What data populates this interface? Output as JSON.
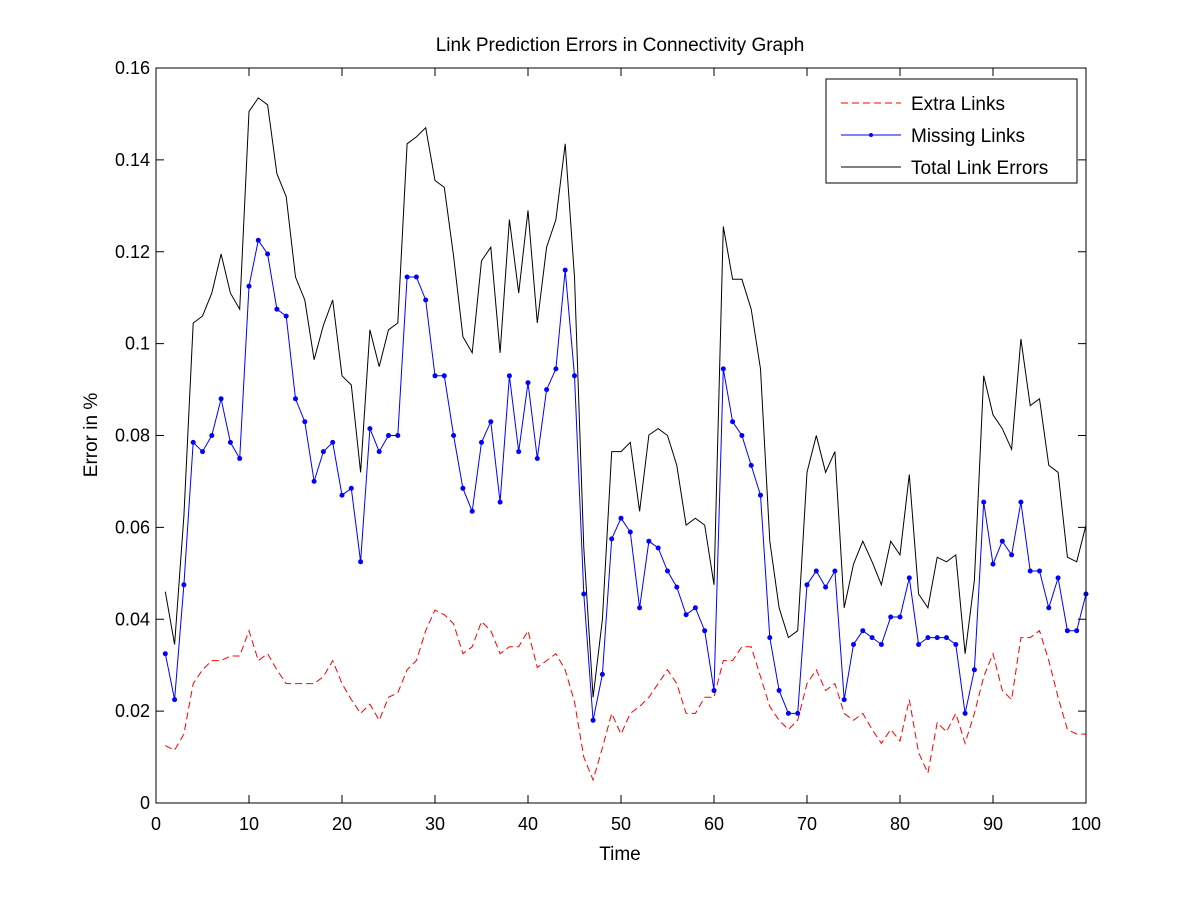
{
  "chart_data": {
    "type": "line",
    "title": "Link Prediction Errors in Connectivity Graph",
    "xlabel": "Time",
    "ylabel": "Error in %",
    "xlim": [
      0,
      100
    ],
    "ylim": [
      0,
      0.16
    ],
    "xticks": [
      "0",
      "10",
      "20",
      "30",
      "40",
      "50",
      "60",
      "70",
      "80",
      "90",
      "100"
    ],
    "yticks": [
      "0",
      "0.02",
      "0.04",
      "0.06",
      "0.08",
      "0.1",
      "0.12",
      "0.14",
      "0.16"
    ],
    "grid": false,
    "legend_position": "top-right",
    "x": [
      1,
      2,
      3,
      4,
      5,
      6,
      7,
      8,
      9,
      10,
      11,
      12,
      13,
      14,
      15,
      16,
      17,
      18,
      19,
      20,
      21,
      22,
      23,
      24,
      25,
      26,
      27,
      28,
      29,
      30,
      31,
      32,
      33,
      34,
      35,
      36,
      37,
      38,
      39,
      40,
      41,
      42,
      43,
      44,
      45,
      46,
      47,
      48,
      49,
      50,
      51,
      52,
      53,
      54,
      55,
      56,
      57,
      58,
      59,
      60,
      61,
      62,
      63,
      64,
      65,
      66,
      67,
      68,
      69,
      70,
      71,
      72,
      73,
      74,
      75,
      76,
      77,
      78,
      79,
      80,
      81,
      82,
      83,
      84,
      85,
      86,
      87,
      88,
      89,
      90,
      91,
      92,
      93,
      94,
      95,
      96,
      97,
      98,
      99,
      100
    ],
    "series": [
      {
        "name": "Extra Links",
        "color": "#ff0000",
        "style": "dashed",
        "values": [
          0.0125,
          0.0115,
          0.015,
          0.026,
          0.029,
          0.031,
          0.031,
          0.032,
          0.032,
          0.0375,
          0.031,
          0.0325,
          0.029,
          0.026,
          0.026,
          0.026,
          0.026,
          0.0275,
          0.031,
          0.026,
          0.0225,
          0.0195,
          0.0215,
          0.018,
          0.023,
          0.024,
          0.029,
          0.031,
          0.0375,
          0.042,
          0.041,
          0.039,
          0.0325,
          0.034,
          0.0395,
          0.0375,
          0.0325,
          0.034,
          0.034,
          0.0375,
          0.0295,
          0.031,
          0.0325,
          0.029,
          0.022,
          0.01,
          0.005,
          0.012,
          0.0195,
          0.015,
          0.0195,
          0.021,
          0.023,
          0.026,
          0.029,
          0.026,
          0.0195,
          0.0195,
          0.023,
          0.023,
          0.031,
          0.031,
          0.034,
          0.034,
          0.0275,
          0.021,
          0.018,
          0.016,
          0.018,
          0.026,
          0.029,
          0.0245,
          0.026,
          0.0195,
          0.018,
          0.0195,
          0.016,
          0.013,
          0.016,
          0.0135,
          0.0225,
          0.011,
          0.0065,
          0.0175,
          0.0155,
          0.0195,
          0.013,
          0.0195,
          0.0275,
          0.0325,
          0.0245,
          0.0225,
          0.036,
          0.036,
          0.0375,
          0.031,
          0.023,
          0.016,
          0.015,
          0.015
        ]
      },
      {
        "name": "Missing Links",
        "color": "#0000ff",
        "style": "solid-markers",
        "values": [
          0.0325,
          0.0225,
          0.0475,
          0.0785,
          0.0765,
          0.08,
          0.088,
          0.0785,
          0.075,
          0.1125,
          0.1225,
          0.1195,
          0.1075,
          0.106,
          0.088,
          0.083,
          0.07,
          0.0765,
          0.0785,
          0.067,
          0.0685,
          0.0525,
          0.0815,
          0.0765,
          0.08,
          0.08,
          0.1145,
          0.1145,
          0.1095,
          0.093,
          0.093,
          0.08,
          0.0685,
          0.0635,
          0.0785,
          0.083,
          0.0655,
          0.093,
          0.0765,
          0.0915,
          0.075,
          0.09,
          0.0945,
          0.116,
          0.093,
          0.0455,
          0.018,
          0.028,
          0.0575,
          0.062,
          0.059,
          0.0425,
          0.057,
          0.0555,
          0.0505,
          0.047,
          0.041,
          0.0425,
          0.0375,
          0.0245,
          0.0945,
          0.083,
          0.08,
          0.0735,
          0.067,
          0.036,
          0.0245,
          0.0195,
          0.0195,
          0.0475,
          0.0505,
          0.047,
          0.0505,
          0.0225,
          0.0345,
          0.0375,
          0.036,
          0.0345,
          0.0405,
          0.0405,
          0.049,
          0.0345,
          0.036,
          0.036,
          0.036,
          0.0345,
          0.0195,
          0.029,
          0.0655,
          0.052,
          0.057,
          0.054,
          0.0655,
          0.0505,
          0.0505,
          0.0425,
          0.049,
          0.0375,
          0.0375,
          0.0455
        ]
      },
      {
        "name": "Total Link Errors",
        "color": "#000000",
        "style": "solid",
        "values": [
          0.046,
          0.0345,
          0.0625,
          0.1045,
          0.106,
          0.111,
          0.1195,
          0.111,
          0.1075,
          0.1505,
          0.1535,
          0.152,
          0.137,
          0.132,
          0.1145,
          0.1095,
          0.0965,
          0.104,
          0.1095,
          0.093,
          0.091,
          0.072,
          0.103,
          0.095,
          0.103,
          0.1045,
          0.1435,
          0.145,
          0.147,
          0.1355,
          0.134,
          0.119,
          0.1015,
          0.098,
          0.118,
          0.121,
          0.098,
          0.127,
          0.111,
          0.129,
          0.1045,
          0.121,
          0.127,
          0.1435,
          0.1145,
          0.0555,
          0.023,
          0.04,
          0.0765,
          0.0765,
          0.0785,
          0.0635,
          0.0801,
          0.0815,
          0.08,
          0.0735,
          0.0605,
          0.062,
          0.0605,
          0.0475,
          0.1255,
          0.114,
          0.114,
          0.1075,
          0.0945,
          0.057,
          0.0425,
          0.036,
          0.0375,
          0.072,
          0.08,
          0.072,
          0.0765,
          0.0425,
          0.052,
          0.057,
          0.0525,
          0.0475,
          0.057,
          0.054,
          0.0715,
          0.0455,
          0.0425,
          0.0535,
          0.0525,
          0.054,
          0.0325,
          0.0485,
          0.093,
          0.0845,
          0.0815,
          0.077,
          0.101,
          0.0865,
          0.088,
          0.0735,
          0.072,
          0.0535,
          0.0525,
          0.0605
        ]
      }
    ]
  }
}
